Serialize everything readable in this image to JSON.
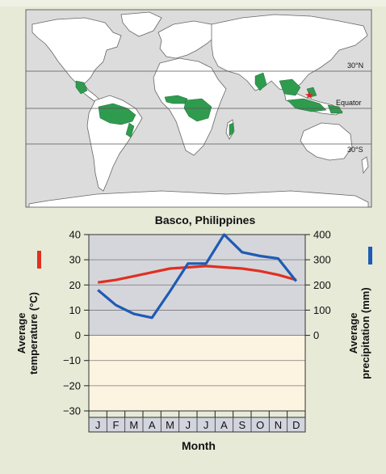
{
  "map": {
    "lines": {
      "north": "30°N",
      "equator": "Equator",
      "south": "30°S"
    },
    "colors": {
      "ocean": "#dcdcdc",
      "land": "#ffffff",
      "rainforest": "#2f9b4f",
      "marker": "#e02020"
    }
  },
  "chart_data": {
    "type": "line",
    "title": "Basco, Philippines",
    "xlabel": "Month",
    "categories": [
      "J",
      "F",
      "M",
      "A",
      "M",
      "J",
      "J",
      "A",
      "S",
      "O",
      "N",
      "D"
    ],
    "ylabel_left": [
      "Average",
      "temperature (°C)"
    ],
    "ylabel_right": [
      "Average",
      "precipitation (mm)"
    ],
    "ylim_left": [
      -30,
      40
    ],
    "yticks_left": [
      40,
      30,
      20,
      10,
      0,
      -10,
      -20,
      -30
    ],
    "ylim_right": [
      -300,
      400
    ],
    "yticks_right": [
      400,
      300,
      200,
      100,
      0
    ],
    "grid": true,
    "series": [
      {
        "axis": "left",
        "color": "#e03020",
        "values": [
          21,
          22,
          23.5,
          25,
          26.5,
          27,
          27.5,
          27,
          26.5,
          25.5,
          24,
          22
        ]
      },
      {
        "axis": "right",
        "color": "#1e5bb5",
        "values": [
          180,
          120,
          85,
          70,
          175,
          285,
          285,
          400,
          330,
          315,
          305,
          215
        ]
      }
    ],
    "colors": {
      "upper_bg": "#d5d6db",
      "lower_bg": "#fdf3e1",
      "left_legend": "#e03020",
      "right_legend": "#1e5bb5"
    }
  }
}
